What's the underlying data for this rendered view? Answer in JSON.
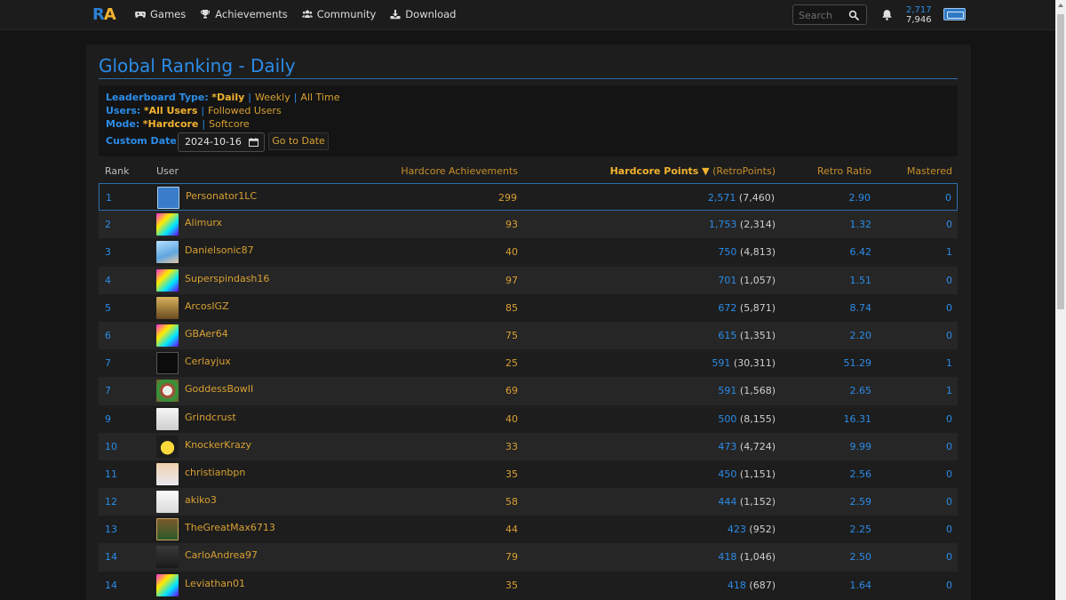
{
  "nav": {
    "logo_r": "R",
    "logo_a": "A",
    "items": [
      {
        "label": "Games",
        "icon": "gamepad-icon"
      },
      {
        "label": "Achievements",
        "icon": "trophy-icon"
      },
      {
        "label": "Community",
        "icon": "users-icon"
      },
      {
        "label": "Download",
        "icon": "download-icon"
      }
    ],
    "search_placeholder": "Search",
    "points_hardcore": "2,717",
    "points_softcore": "7,946"
  },
  "page": {
    "title": "Global Ranking - Daily"
  },
  "filters": {
    "leaderboard_label": "Leaderboard Type:",
    "leaderboard_selected": "*Daily",
    "leaderboard_opt1": "Weekly",
    "leaderboard_opt2": "All Time",
    "users_label": "Users:",
    "users_selected": "*All Users",
    "users_opt1": "Followed Users",
    "mode_label": "Mode:",
    "mode_selected": "*Hardcore",
    "mode_opt1": "Softcore",
    "date_label": "Custom Date:",
    "date_value": "2024-10-16",
    "go_label": "Go to Date",
    "separator": "|"
  },
  "table": {
    "headers": {
      "rank": "Rank",
      "user": "User",
      "achievements": "Hardcore Achievements",
      "points_main": "Hardcore Points ▼",
      "points_sub": "(RetroPoints)",
      "ratio": "Retro Ratio",
      "mastered": "Mastered"
    },
    "rows": [
      {
        "rank": "1",
        "user": "Personator1LC",
        "ach": "299",
        "points": "2,571",
        "retro": "(7,460)",
        "ratio": "2.90",
        "mastered": "0"
      },
      {
        "rank": "2",
        "user": "Alimurx",
        "ach": "93",
        "points": "1,753",
        "retro": "(2,314)",
        "ratio": "1.32",
        "mastered": "0"
      },
      {
        "rank": "3",
        "user": "Danielsonic87",
        "ach": "40",
        "points": "750",
        "retro": "(4,813)",
        "ratio": "6.42",
        "mastered": "1"
      },
      {
        "rank": "4",
        "user": "Superspindash16",
        "ach": "97",
        "points": "701",
        "retro": "(1,057)",
        "ratio": "1.51",
        "mastered": "0"
      },
      {
        "rank": "5",
        "user": "ArcosIGZ",
        "ach": "85",
        "points": "672",
        "retro": "(5,871)",
        "ratio": "8.74",
        "mastered": "0"
      },
      {
        "rank": "6",
        "user": "GBAer64",
        "ach": "75",
        "points": "615",
        "retro": "(1,351)",
        "ratio": "2.20",
        "mastered": "0"
      },
      {
        "rank": "7",
        "user": "Cerlayjux",
        "ach": "25",
        "points": "591",
        "retro": "(30,311)",
        "ratio": "51.29",
        "mastered": "1"
      },
      {
        "rank": "7",
        "user": "GoddessBowII",
        "ach": "69",
        "points": "591",
        "retro": "(1,568)",
        "ratio": "2.65",
        "mastered": "1"
      },
      {
        "rank": "9",
        "user": "Grindcrust",
        "ach": "40",
        "points": "500",
        "retro": "(8,155)",
        "ratio": "16.31",
        "mastered": "0"
      },
      {
        "rank": "10",
        "user": "KnockerKrazy",
        "ach": "33",
        "points": "473",
        "retro": "(4,724)",
        "ratio": "9.99",
        "mastered": "0"
      },
      {
        "rank": "11",
        "user": "christianbpn",
        "ach": "35",
        "points": "450",
        "retro": "(1,151)",
        "ratio": "2.56",
        "mastered": "0"
      },
      {
        "rank": "12",
        "user": "akiko3",
        "ach": "58",
        "points": "444",
        "retro": "(1,152)",
        "ratio": "2.59",
        "mastered": "0"
      },
      {
        "rank": "13",
        "user": "TheGreatMax6713",
        "ach": "44",
        "points": "423",
        "retro": "(952)",
        "ratio": "2.25",
        "mastered": "0"
      },
      {
        "rank": "14",
        "user": "CarloAndrea97",
        "ach": "79",
        "points": "418",
        "retro": "(1,046)",
        "ratio": "2.50",
        "mastered": "0"
      },
      {
        "rank": "14",
        "user": "Leviathan01",
        "ach": "35",
        "points": "418",
        "retro": "(687)",
        "ratio": "1.64",
        "mastered": "0"
      }
    ]
  },
  "colors": {
    "accent_blue": "#2b8ce8",
    "accent_gold": "#f2b230",
    "background": "#141414",
    "panel": "#1d1d1d"
  }
}
